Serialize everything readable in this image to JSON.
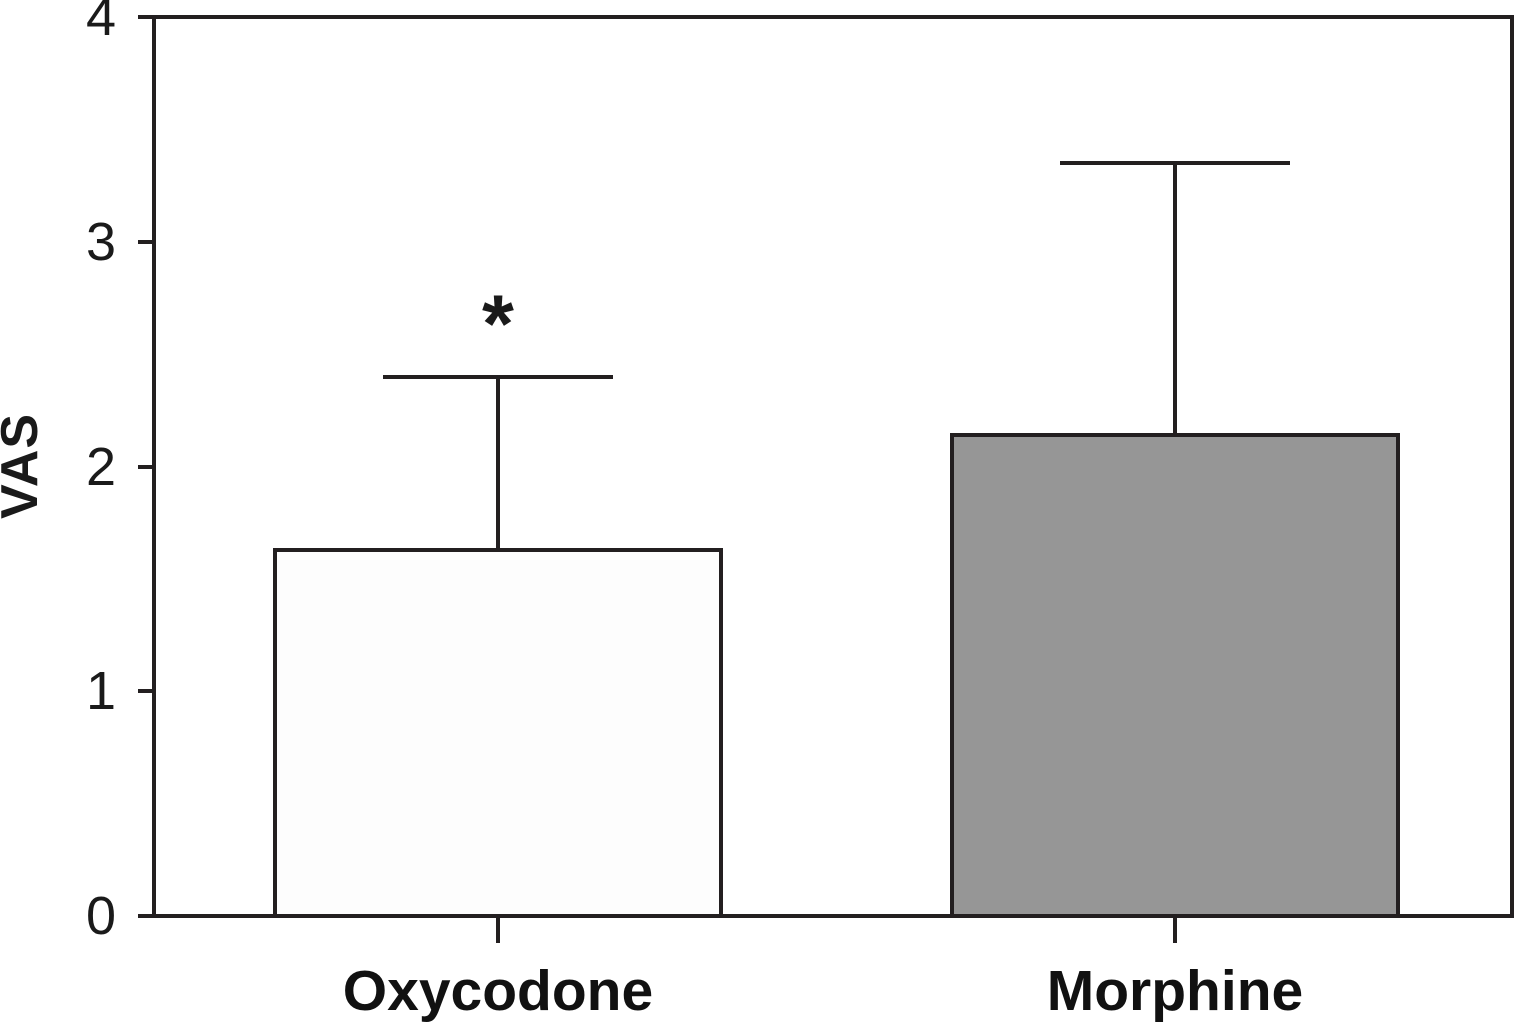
{
  "chart_data": {
    "type": "bar",
    "title": "",
    "xlabel": "",
    "ylabel": "VAS",
    "categories": [
      "Oxycodone",
      "Morphine"
    ],
    "values": [
      1.63,
      2.14
    ],
    "errors_upper": [
      0.77,
      1.21
    ],
    "error_bar_tops": [
      2.4,
      3.35
    ],
    "ylim": [
      0,
      4
    ],
    "yticks": [
      4,
      3,
      2,
      1,
      0
    ],
    "ytick_labels": [
      "4",
      "3",
      "2",
      "1",
      "0"
    ],
    "grid": "off",
    "legend": "none",
    "plot_frame": "full-box",
    "bar_fill_colors": [
      "#fdfdfd",
      "#969696"
    ],
    "bar_edge_color": "#231f20",
    "axis_color": "#231f20",
    "annotations": [
      {
        "text": "*",
        "category": "Oxycodone",
        "position": "above-error-bar"
      }
    ]
  }
}
